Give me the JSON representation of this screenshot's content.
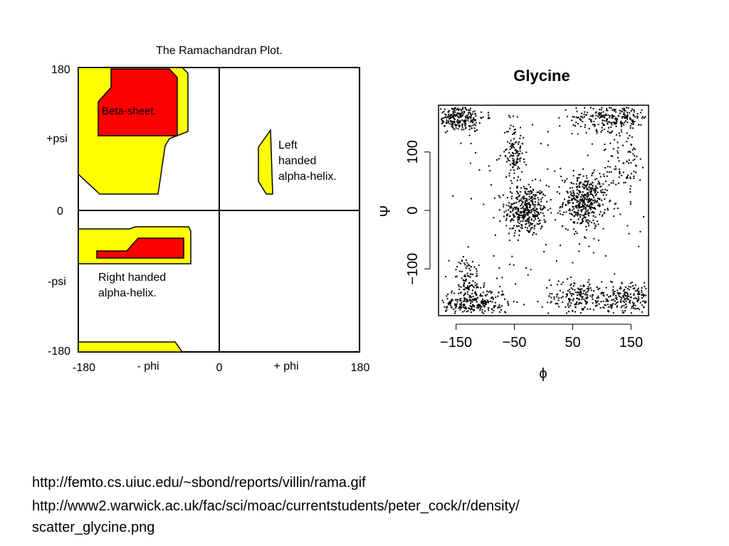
{
  "chart_data": [
    {
      "type": "region-map",
      "title": "The Ramachandran Plot.",
      "axis_ticks_x": [
        "-180",
        "- phi",
        "0",
        "+ phi",
        "180"
      ],
      "axis_ticks_y": [
        "180",
        "+psi",
        "0",
        "-psi",
        "-180"
      ],
      "xlim": [
        -180,
        180
      ],
      "ylim": [
        -180,
        180
      ],
      "region_labels": {
        "beta_sheet": "Beta-sheet.",
        "left_helix": [
          "Left",
          "handed",
          "alpha-helix."
        ],
        "right_helix": [
          "Right handed",
          "alpha-helix."
        ]
      },
      "colors": {
        "allowed": "#ffff00",
        "core": "#ff0000",
        "outline": "#000000"
      }
    },
    {
      "type": "scatter",
      "title": "Glycine",
      "xlabel": "ϕ",
      "ylabel": "Ψ",
      "xlim": [
        -180,
        180
      ],
      "ylim": [
        -180,
        180
      ],
      "xticks": [
        -150,
        -50,
        50,
        150
      ],
      "yticks": [
        -100,
        0,
        100
      ],
      "clusters": [
        {
          "center": [
            -30,
            0
          ],
          "spread": [
            18,
            22
          ],
          "n": 380
        },
        {
          "center": [
            70,
            15
          ],
          "spread": [
            18,
            22
          ],
          "n": 420
        },
        {
          "center": [
            -150,
            160
          ],
          "spread": [
            25,
            12
          ],
          "n": 300
        },
        {
          "center": [
            120,
            160
          ],
          "spread": [
            35,
            12
          ],
          "n": 260
        },
        {
          "center": [
            -120,
            -160
          ],
          "spread": [
            30,
            12
          ],
          "n": 260
        },
        {
          "center": [
            -50,
            100
          ],
          "spread": [
            8,
            25
          ],
          "n": 120
        },
        {
          "center": [
            -130,
            -120
          ],
          "spread": [
            10,
            20
          ],
          "n": 100
        },
        {
          "center": [
            150,
            -150
          ],
          "spread": [
            25,
            15
          ],
          "n": 220
        },
        {
          "center": [
            60,
            -150
          ],
          "spread": [
            30,
            15
          ],
          "n": 200
        },
        {
          "center": [
            140,
            80
          ],
          "spread": [
            20,
            30
          ],
          "n": 90
        }
      ],
      "color": "#000000"
    }
  ],
  "sources": [
    "http://femto.cs.uiuc.edu/~sbond/reports/villin/rama.gif",
    "http://www2.warwick.ac.uk/fac/sci/moac/currentstudents/peter_cock/r/density/",
    "scatter_glycine.png"
  ]
}
